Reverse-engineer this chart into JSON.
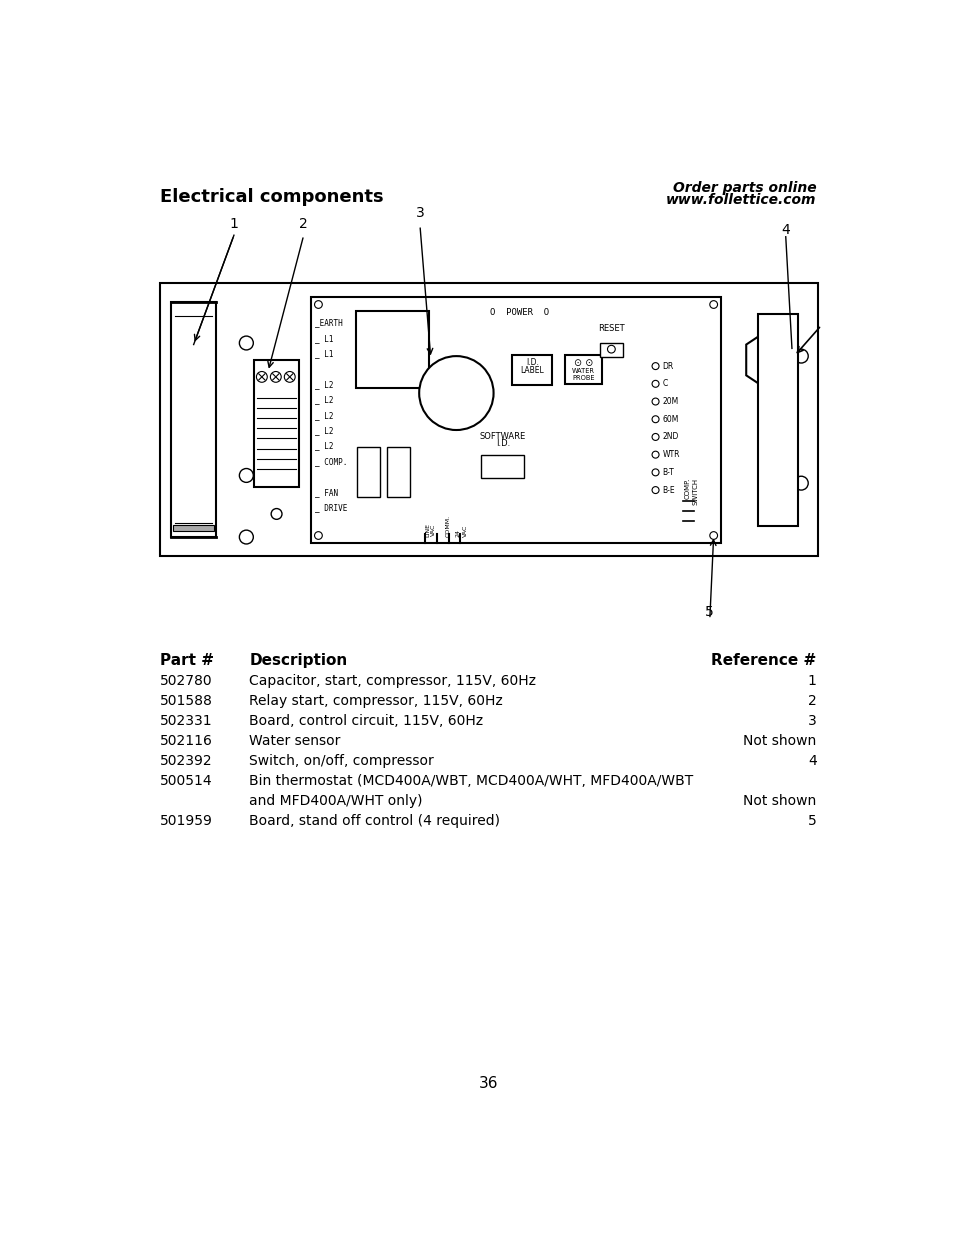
{
  "title": "Electrical components",
  "order_line1": "Order parts online",
  "order_line2": "www.follettice.com",
  "page_number": "36",
  "bg_color": "#ffffff",
  "table_headers": [
    "Part #",
    "Description",
    "Reference #"
  ],
  "table_data": [
    [
      "502780",
      "Capacitor, start, compressor, 115V, 60Hz",
      "1"
    ],
    [
      "501588",
      "Relay start, compressor, 115V, 60Hz",
      "2"
    ],
    [
      "502331",
      "Board, control circuit, 115V, 60Hz",
      "3"
    ],
    [
      "502116",
      "Water sensor",
      "Not shown"
    ],
    [
      "502392",
      "Switch, on/off, compressor",
      "4"
    ],
    [
      "500514",
      "Bin thermostat (MCD400A/WBT, MCD400A/WHT, MFD400A/WBT",
      ""
    ],
    [
      "",
      "and MFD400A/WHT only)",
      "Not shown"
    ],
    [
      "501959",
      "Board, stand off control (4 required)",
      "5"
    ]
  ]
}
